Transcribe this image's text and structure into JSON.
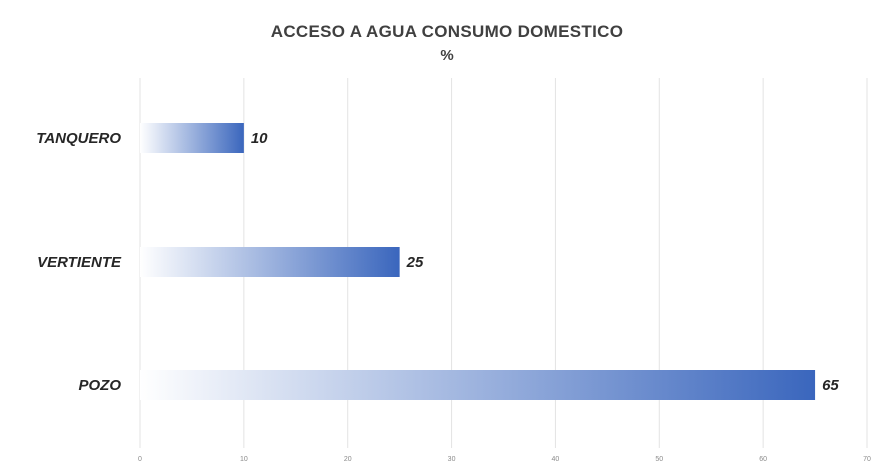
{
  "chart_data": {
    "type": "bar",
    "orientation": "horizontal",
    "title": "ACCESO A AGUA CONSUMO DOMESTICO",
    "subtitle": "%",
    "categories": [
      "TANQUERO",
      "VERTIENTE",
      "POZO"
    ],
    "values": [
      10,
      25,
      65
    ],
    "data_labels": [
      "10",
      "25",
      "65"
    ],
    "xlim": [
      0,
      70
    ],
    "x_ticks": [
      0,
      10,
      20,
      30,
      40,
      50,
      60,
      70
    ],
    "x_tick_labels": [
      "0",
      "10",
      "20",
      "30",
      "40",
      "50",
      "60",
      "70"
    ],
    "grid": "vertical",
    "legend": "none",
    "bar_fill": "gradient from white to blue",
    "colors": {
      "bar_start": "#ffffff",
      "bar_end": "#3a66bd",
      "grid": "#e3e3e3",
      "text": "#262626",
      "title": "#404040"
    }
  }
}
